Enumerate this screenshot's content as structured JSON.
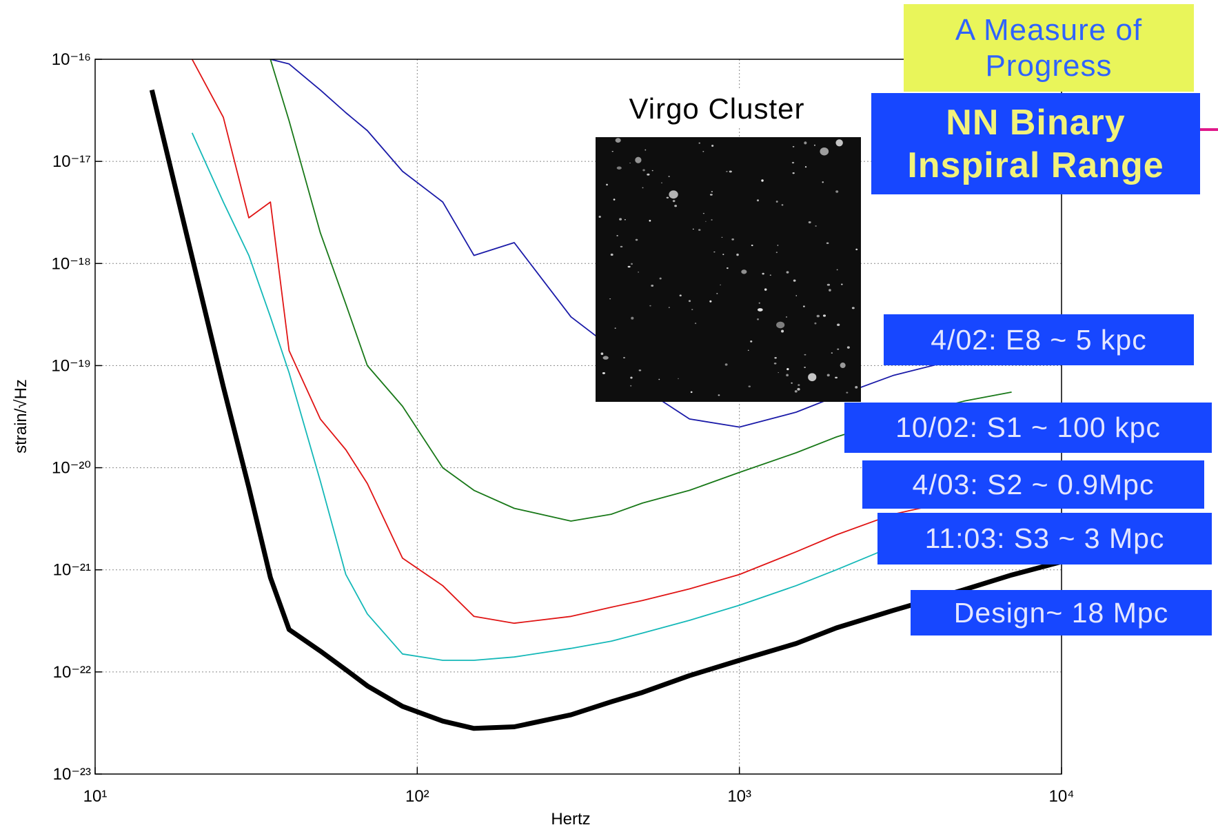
{
  "chart_data": {
    "type": "line",
    "xlabel": "Hertz",
    "ylabel": "strain/√Hz",
    "xscale": "log",
    "yscale": "log",
    "grid": true,
    "xlim": [
      10,
      10000
    ],
    "ylim": [
      1e-23,
      1e-16
    ],
    "xticks": [
      {
        "value": 10,
        "label": "10¹"
      },
      {
        "value": 100,
        "label": "10²"
      },
      {
        "value": 1000,
        "label": "10³"
      },
      {
        "value": 10000,
        "label": "10⁴"
      }
    ],
    "yticks": [
      {
        "value": 1e-23,
        "label": "10⁻²³"
      },
      {
        "value": 1e-22,
        "label": "10⁻²²"
      },
      {
        "value": 1e-21,
        "label": "10⁻²¹"
      },
      {
        "value": 1e-20,
        "label": "10⁻²⁰"
      },
      {
        "value": 1e-19,
        "label": "10⁻¹⁹"
      },
      {
        "value": 1e-18,
        "label": "10⁻¹⁸"
      },
      {
        "value": 1e-17,
        "label": "10⁻¹⁷"
      },
      {
        "value": 1e-16,
        "label": "10⁻¹⁶"
      }
    ],
    "annotations": {
      "heading": "A Measure of Progress",
      "range_title": "NN Binary Inspiral Range",
      "image_caption": "Virgo Cluster"
    },
    "x": [
      15,
      20,
      25,
      30,
      35,
      40,
      50,
      60,
      70,
      90,
      120,
      150,
      200,
      300,
      400,
      500,
      700,
      1000,
      1500,
      2000,
      3000,
      5000,
      7000,
      10000
    ],
    "series": [
      {
        "name": "4/02: E8 ~ 5 kpc",
        "color": "#1a1aa8",
        "values": [
          null,
          null,
          null,
          null,
          1e-16,
          9e-17,
          5e-17,
          3e-17,
          2e-17,
          8e-18,
          4e-18,
          1.2e-18,
          1.6e-18,
          3e-19,
          1.5e-19,
          6e-20,
          3e-20,
          2.5e-20,
          3.5e-20,
          5e-20,
          8e-20,
          1.2e-19,
          1.5e-19,
          null
        ]
      },
      {
        "name": "10/02: S1 ~ 100 kpc",
        "color": "#187818",
        "values": [
          null,
          null,
          null,
          null,
          1e-16,
          2.5e-17,
          2e-18,
          4e-19,
          1e-19,
          4e-20,
          1e-20,
          6e-21,
          4e-21,
          3e-21,
          3.5e-21,
          4.5e-21,
          6e-21,
          9e-21,
          1.4e-20,
          2e-20,
          3e-20,
          4.5e-20,
          5.5e-20,
          null
        ]
      },
      {
        "name": "4/03: S2 ~ 0.9Mpc",
        "color": "#e01414",
        "values": [
          null,
          1e-16,
          2.7e-17,
          2.8e-18,
          4e-18,
          1.4e-19,
          3e-20,
          1.5e-20,
          7e-21,
          1.3e-21,
          7e-22,
          3.5e-22,
          3e-22,
          3.5e-22,
          4.3e-22,
          5e-22,
          6.5e-22,
          9e-22,
          1.5e-21,
          2.2e-21,
          3.5e-21,
          5e-21,
          8e-21,
          null
        ]
      },
      {
        "name": "11:03: S3 ~ 3 Mpc",
        "color": "#14b8b8",
        "values": [
          null,
          1.9e-17,
          4e-18,
          1.2e-18,
          3e-19,
          8.5e-20,
          7.4e-21,
          9e-22,
          3.7e-22,
          1.5e-22,
          1.3e-22,
          1.3e-22,
          1.4e-22,
          1.7e-22,
          2e-22,
          2.4e-22,
          3.2e-22,
          4.5e-22,
          7e-22,
          1e-21,
          1.7e-21,
          2.7e-21,
          null,
          null
        ]
      },
      {
        "name": "Design~ 18 Mpc",
        "color": "#000000",
        "values": [
          5e-17,
          1.15e-18,
          6.2e-20,
          6.4e-21,
          8.4e-22,
          2.6e-22,
          1.6e-22,
          1.05e-22,
          7.3e-23,
          4.6e-23,
          3.3e-23,
          2.8e-23,
          2.9e-23,
          3.8e-23,
          5.1e-23,
          6.3e-23,
          9.2e-23,
          1.3e-22,
          1.9e-22,
          2.7e-22,
          4e-22,
          6.4e-22,
          8.9e-22,
          1.2e-21
        ]
      }
    ]
  }
}
